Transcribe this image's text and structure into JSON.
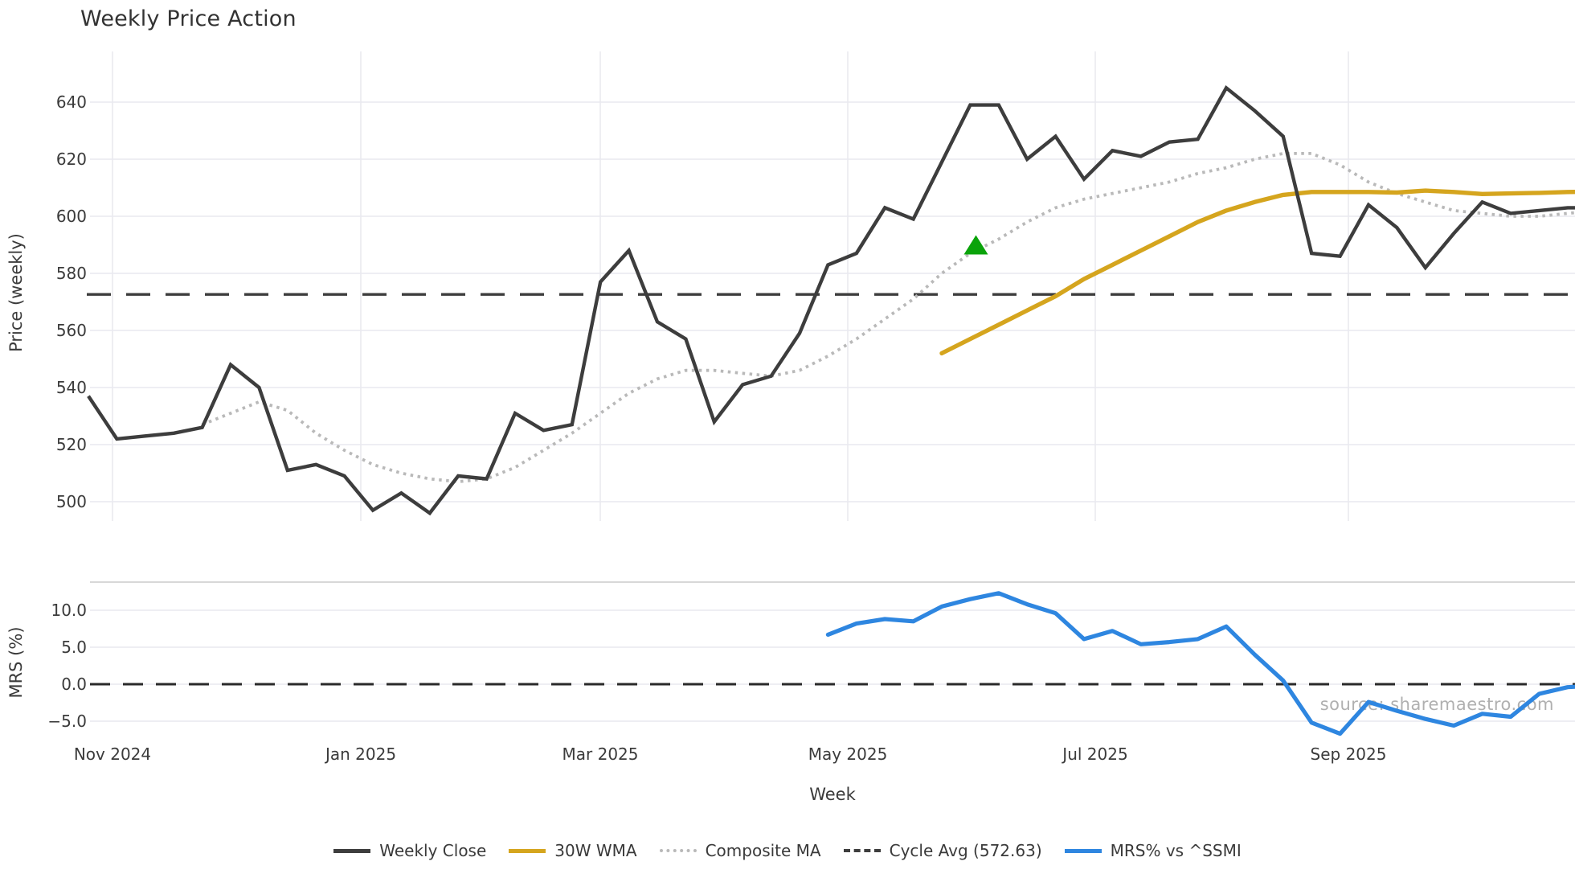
{
  "title": "Weekly Price Action",
  "source_watermark": "source: sharemaestro.com",
  "colors": {
    "weekly_close": "#3d3d3d",
    "wma_30w": "#d5a51e",
    "composite_ma": "#b9b9b9",
    "cycle_avg": "#3d3d3d",
    "mrs_line": "#2e86e0",
    "signal_marker": "#0aa30a",
    "grid": "#e9e9ef",
    "spine": "#cccccc",
    "tick_text": "#3b3b3b",
    "watermark_text": "#b0b0b0"
  },
  "main_chart": {
    "ylabel": "Price (weekly)",
    "yticks": [
      "640",
      "620",
      "600",
      "580",
      "560",
      "540",
      "520",
      "500"
    ],
    "ytick_values": [
      640,
      620,
      600,
      580,
      560,
      540,
      520,
      500
    ]
  },
  "mrs_chart": {
    "ylabel": "MRS (%)",
    "yticks": [
      "10.0",
      "5.0",
      "0.0",
      "−5.0"
    ],
    "ytick_values": [
      10,
      5,
      0,
      -5
    ]
  },
  "xaxis": {
    "label": "Week",
    "ticks": [
      "Nov 2024",
      "Jan 2025",
      "Mar 2025",
      "May 2025",
      "Jul 2025",
      "Sep 2025"
    ]
  },
  "legend": [
    {
      "label": "Weekly Close",
      "style": "solid",
      "color": "#3d3d3d"
    },
    {
      "label": "30W WMA",
      "style": "solid",
      "color": "#d5a51e"
    },
    {
      "label": "Composite MA",
      "style": "dotted",
      "color": "#b9b9b9"
    },
    {
      "label": "Cycle Avg (572.63)",
      "style": "dashed",
      "color": "#3d3d3d"
    },
    {
      "label": "MRS% vs ^SSMI",
      "style": "solid",
      "color": "#2e86e0"
    }
  ],
  "chart_data": [
    {
      "type": "line",
      "title": "Weekly Price Action",
      "xlabel": "Week",
      "ylabel": "Price (weekly)",
      "x_unit": "week_index",
      "x_range_weeks": 54,
      "x_tick_labels": [
        "Nov 2024",
        "Jan 2025",
        "Mar 2025",
        "May 2025",
        "Jul 2025",
        "Sep 2025"
      ],
      "ylim": [
        492,
        658
      ],
      "grid": true,
      "legend_position": "bottom",
      "cycle_avg": 572.63,
      "series": [
        {
          "name": "Weekly Close",
          "start_week": 0,
          "values": [
            537,
            522,
            523,
            524,
            526,
            548,
            540,
            511,
            513,
            509,
            497,
            503,
            496,
            509,
            508,
            531,
            525,
            527,
            577,
            588,
            563,
            557,
            528,
            541,
            544,
            559,
            583,
            587,
            603,
            599,
            619,
            639,
            639,
            620,
            628,
            613,
            623,
            621,
            626,
            627,
            645,
            637,
            628,
            587,
            586,
            604,
            596,
            582,
            594,
            605,
            601,
            602,
            603,
            603
          ]
        },
        {
          "name": "Composite MA",
          "start_week": 4,
          "values": [
            527,
            531,
            535,
            532,
            524,
            518,
            513,
            510,
            508,
            507,
            508,
            512,
            518,
            524,
            531,
            538,
            543,
            546,
            546,
            545,
            544,
            546,
            551,
            557,
            564,
            571,
            580,
            587,
            592,
            598,
            603,
            606,
            608,
            610,
            612,
            615,
            617,
            620,
            622,
            622,
            618,
            612,
            608,
            605,
            602,
            601,
            600,
            600,
            601,
            602
          ]
        },
        {
          "name": "30W WMA",
          "start_week": 30,
          "values": [
            552,
            557,
            562,
            567,
            572,
            578,
            583,
            588,
            593,
            598,
            602,
            605,
            607.5,
            608.5,
            608.5,
            608.5,
            608.3,
            609,
            608.5,
            607.8,
            608,
            608.2,
            608.5,
            608.6
          ]
        },
        {
          "name": "Cycle Avg (572.63)",
          "type": "hline",
          "value": 572.63
        }
      ],
      "markers": [
        {
          "shape": "triangle-up",
          "color": "#0aa30a",
          "week": 31.2,
          "value": 590
        }
      ]
    },
    {
      "type": "line",
      "ylabel": "MRS (%)",
      "x_unit": "week_index",
      "ylim": [
        -7.5,
        13.8
      ],
      "grid": true,
      "zero_line": 0,
      "series": [
        {
          "name": "MRS% vs ^SSMI",
          "start_week": 26,
          "values": [
            6.7,
            8.2,
            8.8,
            8.5,
            10.5,
            11.5,
            12.3,
            10.8,
            9.6,
            6.1,
            7.2,
            5.4,
            5.7,
            6.1,
            7.8,
            4.0,
            0.5,
            -5.2,
            -6.7,
            -2.4,
            -3.6,
            -4.7,
            -5.6,
            -4.0,
            -4.4,
            -1.3,
            -0.4,
            -0.2
          ]
        }
      ]
    }
  ]
}
